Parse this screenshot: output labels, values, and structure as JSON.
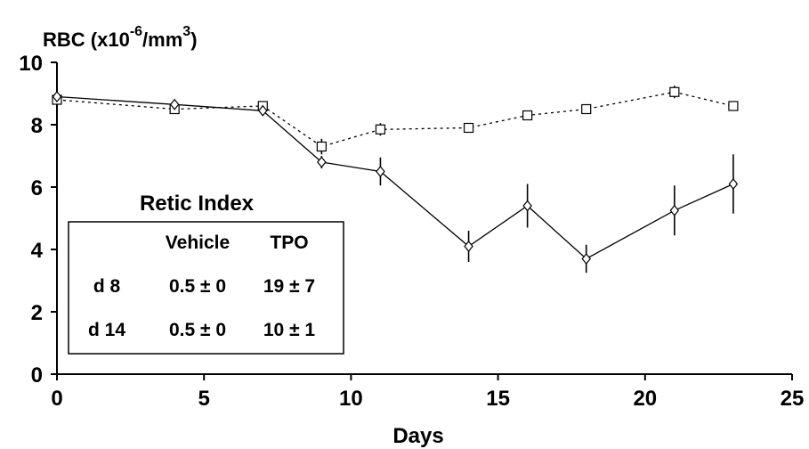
{
  "chart_data": {
    "type": "line",
    "ylabel": {
      "prefix": "RBC (x10",
      "exponent": "-6",
      "middle": "/mm",
      "unit_exponent": "3",
      "suffix": ")"
    },
    "xlabel": "Days",
    "xlim": [
      0,
      25
    ],
    "ylim": [
      0,
      10
    ],
    "xticks": [
      0,
      5,
      10,
      15,
      20,
      25
    ],
    "yticks": [
      0,
      2,
      4,
      6,
      8,
      10
    ],
    "grid": false,
    "series": [
      {
        "marker": "square",
        "line_style": "dotted",
        "x": [
          0,
          4,
          7,
          9,
          11,
          14,
          16,
          18,
          21,
          23
        ],
        "y": [
          8.8,
          8.5,
          8.6,
          7.3,
          7.85,
          7.9,
          8.3,
          8.5,
          9.05,
          8.6
        ],
        "error": [
          0.1,
          0.1,
          0.15,
          0.25,
          0.2,
          0.15,
          0.15,
          0.1,
          0.2,
          0.1
        ]
      },
      {
        "marker": "diamond",
        "line_style": "solid",
        "x": [
          0,
          4,
          7,
          9,
          11,
          14,
          16,
          18,
          21,
          23
        ],
        "y": [
          8.9,
          8.65,
          8.45,
          6.8,
          6.5,
          4.1,
          5.4,
          3.7,
          5.25,
          6.1
        ],
        "error": [
          0.1,
          0.1,
          0.1,
          0.2,
          0.45,
          0.5,
          0.7,
          0.45,
          0.8,
          0.95
        ]
      }
    ],
    "inset_table": {
      "title": "Retic Index",
      "columns": [
        "",
        "Vehicle",
        "TPO"
      ],
      "rows": [
        [
          "d 8",
          "0.5 ± 0",
          "19 ± 7"
        ],
        [
          "d 14",
          "0.5 ± 0",
          "10 ± 1"
        ]
      ]
    }
  }
}
